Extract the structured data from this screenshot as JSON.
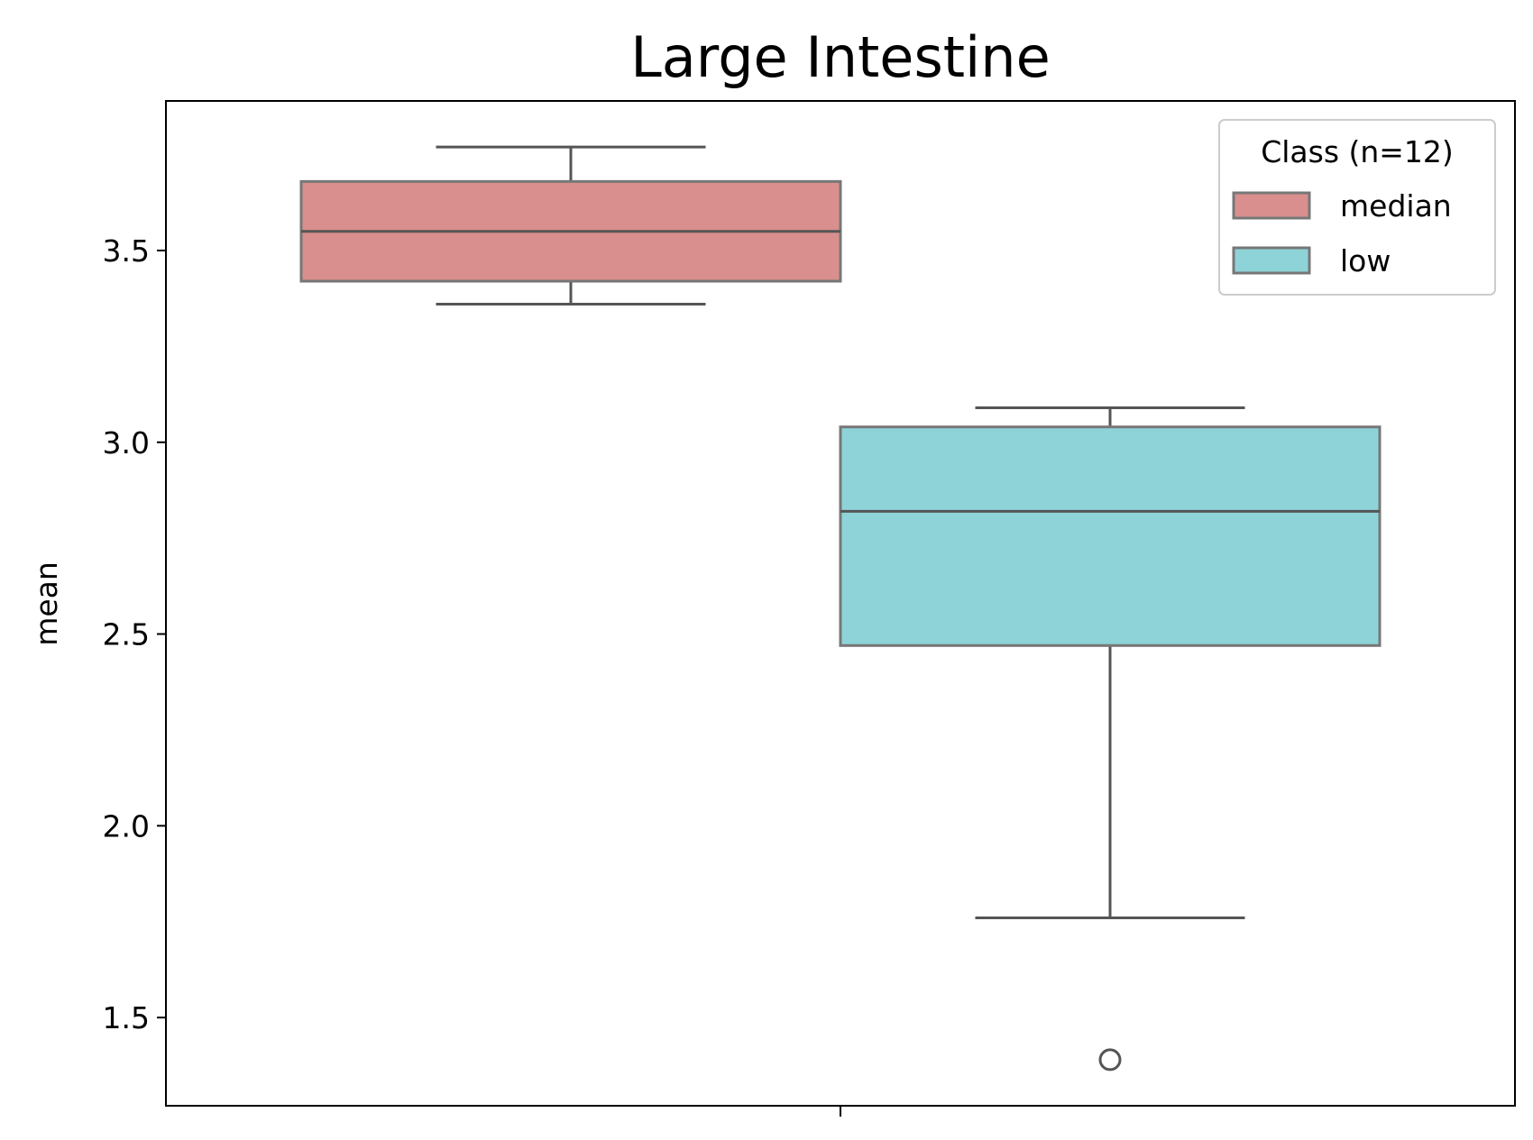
{
  "chart_data": {
    "type": "box",
    "title": "Large Intestine",
    "xlabel": "",
    "ylabel": "mean",
    "ylim": [
      1.27,
      3.89
    ],
    "yticks": [
      1.5,
      2.0,
      2.5,
      3.0,
      3.5
    ],
    "ytick_labels": [
      "1.5",
      "2.0",
      "2.5",
      "3.0",
      "3.5"
    ],
    "grid": false,
    "legend": {
      "title": "Class (n=12)",
      "placement": "top-right",
      "entries": [
        "median",
        "low"
      ]
    },
    "series": [
      {
        "name": "median",
        "color": "#d88f8d",
        "whisker_low": 3.36,
        "q1": 3.42,
        "median": 3.55,
        "q3": 3.68,
        "whisker_high": 3.77,
        "outliers": []
      },
      {
        "name": "low",
        "color": "#8ed3d8",
        "whisker_low": 1.76,
        "q1": 2.47,
        "median": 2.82,
        "q3": 3.04,
        "whisker_high": 3.09,
        "outliers": [
          1.39
        ]
      }
    ],
    "colors": {
      "box_edge": "#777777",
      "whisker": "#555555"
    }
  }
}
